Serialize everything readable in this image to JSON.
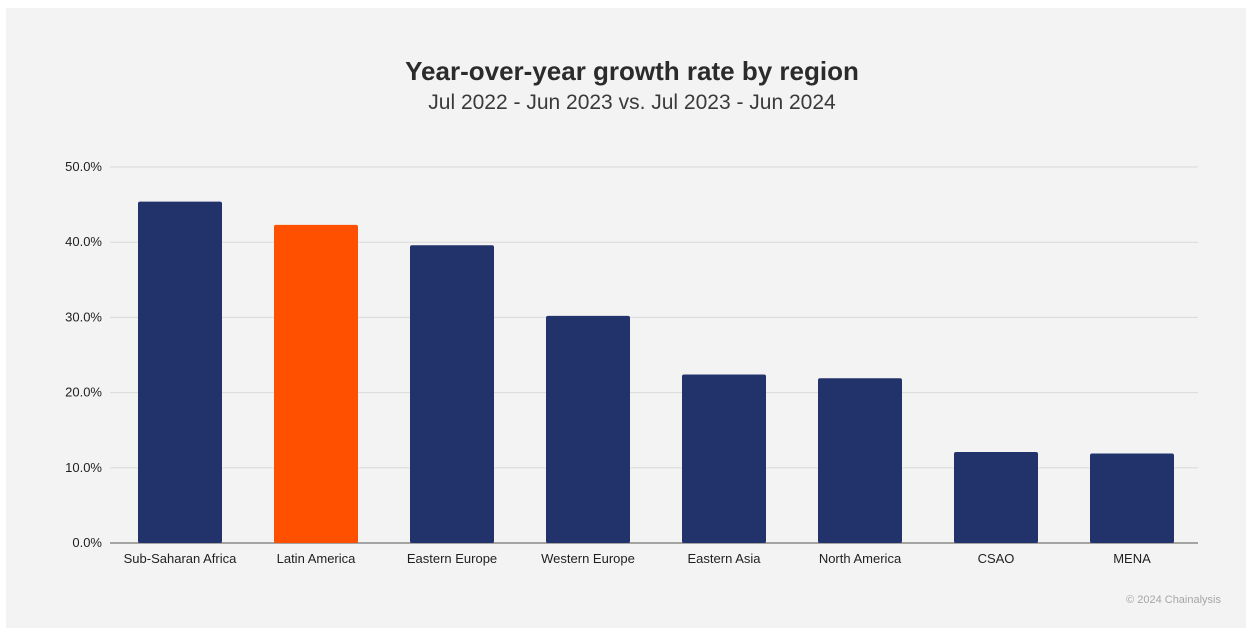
{
  "chart_data": {
    "type": "bar",
    "title": "Year-over-year growth rate by region",
    "subtitle": "Jul 2022 - Jun 2023 vs. Jul 2023 - Jun 2024",
    "categories": [
      "Sub-Saharan Africa",
      "Latin America",
      "Eastern Europe",
      "Western Europe",
      "Eastern Asia",
      "North America",
      "CSAO",
      "MENA"
    ],
    "values": [
      45.4,
      42.3,
      39.6,
      30.2,
      22.4,
      21.9,
      12.1,
      11.9
    ],
    "highlight_category": "Latin America",
    "ylim": [
      0,
      50
    ],
    "yticks": [
      "0.0%",
      "10.0%",
      "20.0%",
      "30.0%",
      "40.0%",
      "50.0%"
    ],
    "xlabel": "",
    "ylabel": "",
    "grid": true,
    "legend": "none",
    "colors": {
      "bar": "#22336b",
      "highlight": "#ff5000",
      "grid": "#d9d9d9",
      "background": "#f3f3f3"
    }
  },
  "footer": {
    "copyright": "© 2024 Chainalysis"
  }
}
